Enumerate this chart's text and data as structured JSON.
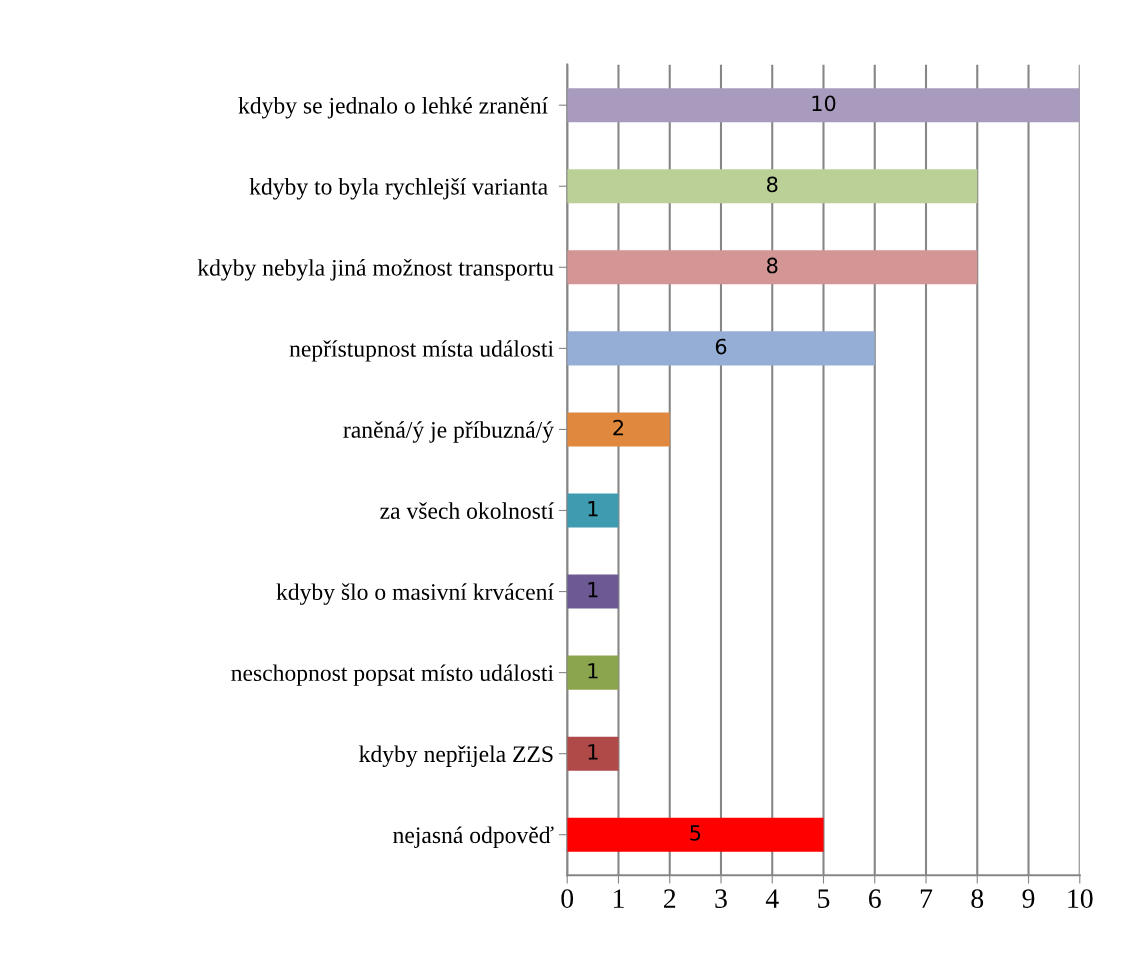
{
  "chart_data": {
    "type": "bar",
    "orientation": "horizontal",
    "categories": [
      "kdyby se jednalo o lehké zranění ",
      "kdyby to byla rychlejší varianta ",
      "kdyby nebyla jiná možnost transportu",
      "nepřístupnost místa události",
      "raněná/ý je příbuzná/ý",
      "za všech okolností",
      "kdyby šlo o masivní krvácení",
      "neschopnost popsat místo události",
      "kdyby nepřijela ZZS",
      "nejasná odpověď"
    ],
    "values": [
      10,
      8,
      8,
      6,
      2,
      1,
      1,
      1,
      1,
      5
    ],
    "colors": [
      "#a99bbd",
      "#bad097",
      "#d49595",
      "#95aed6",
      "#e0883d",
      "#3f9bb0",
      "#6d5a94",
      "#8ba54e",
      "#b04a48",
      "#ff0000"
    ],
    "xlim": [
      0,
      10
    ],
    "xticks": [
      0,
      1,
      2,
      3,
      4,
      5,
      6,
      7,
      8,
      9,
      10
    ],
    "grid": "x",
    "data_labels": true
  }
}
